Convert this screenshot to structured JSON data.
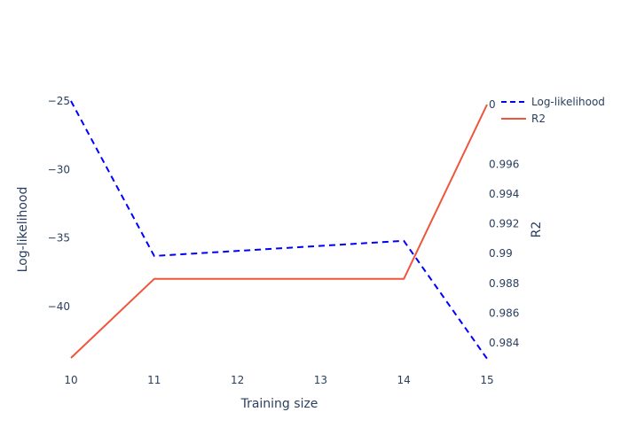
{
  "chart_data": {
    "type": "line",
    "title": "",
    "xlabel": "Training size",
    "y_left_label": "Log-likelihood",
    "y_right_label": "R2",
    "xlim": [
      10,
      15
    ],
    "y_left_lim": [
      -44,
      -25
    ],
    "y_right_lim": [
      0.983,
      1.0
    ],
    "x_ticks": [
      "10",
      "11",
      "12",
      "13",
      "14",
      "15"
    ],
    "y_left_ticks": [
      "−25",
      "−30",
      "−35",
      "−40"
    ],
    "y_right_ticks": [
      "0",
      "0.996",
      "0.994",
      "0.992",
      "0.99",
      "0.988",
      "0.986",
      "0.984"
    ],
    "legend_position": "top-right",
    "series": [
      {
        "name": "Log-likelihood",
        "axis": "left",
        "color": "#0000ff",
        "dash": "dashed",
        "x": [
          10,
          11,
          14,
          15
        ],
        "y": [
          -25.0,
          -36.3,
          -35.2,
          -43.8
        ]
      },
      {
        "name": "R2",
        "axis": "right",
        "color": "#ef553b",
        "dash": "solid",
        "x": [
          10,
          11,
          14,
          15
        ],
        "y": [
          0.983,
          0.9883,
          0.9883,
          1.0
        ]
      }
    ]
  }
}
